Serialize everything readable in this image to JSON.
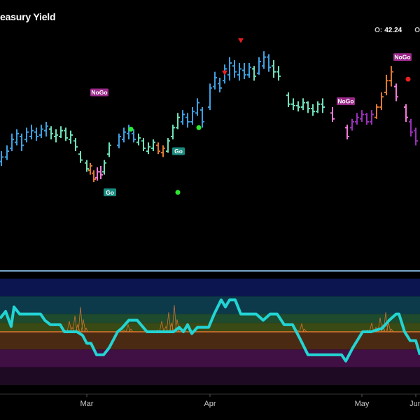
{
  "header": {
    "title": "easury Yield",
    "ohlc_label": "O:",
    "ohlc_value": "42.24",
    "next_label": "O"
  },
  "chart_data": {
    "type": "bar",
    "title": "easury Yield",
    "x_ticks": [
      {
        "label": "Mar",
        "bar": 17
      },
      {
        "label": "Apr",
        "bar": 42
      },
      {
        "label": "May",
        "bar": 69
      },
      {
        "label": "Jun",
        "bar": 96
      }
    ],
    "price_ylim": [
      0,
      100
    ],
    "price_bars": [
      {
        "c": "#3e9fe0",
        "lo": 30,
        "hi": 40,
        "o": 33,
        "cl": 36
      },
      {
        "c": "#3e9fe0",
        "lo": 34,
        "hi": 44,
        "o": 36,
        "cl": 40
      },
      {
        "c": "#3e9fe0",
        "lo": 40,
        "hi": 52,
        "o": 42,
        "cl": 48
      },
      {
        "c": "#3e9fe0",
        "lo": 44,
        "hi": 55,
        "o": 46,
        "cl": 52
      },
      {
        "c": "#3e9fe0",
        "lo": 40,
        "hi": 52,
        "o": 50,
        "cl": 44
      },
      {
        "c": "#3e9fe0",
        "lo": 46,
        "hi": 56,
        "o": 48,
        "cl": 53
      },
      {
        "c": "#3e9fe0",
        "lo": 48,
        "hi": 58,
        "o": 50,
        "cl": 54
      },
      {
        "c": "#3e9fe0",
        "lo": 47,
        "hi": 56,
        "o": 53,
        "cl": 50
      },
      {
        "c": "#3e9fe0",
        "lo": 49,
        "hi": 58,
        "o": 51,
        "cl": 55
      },
      {
        "c": "#3e9fe0",
        "lo": 50,
        "hi": 60,
        "o": 54,
        "cl": 57
      },
      {
        "c": "#6fe0b8",
        "lo": 48,
        "hi": 57,
        "o": 55,
        "cl": 52
      },
      {
        "c": "#6fe0b8",
        "lo": 46,
        "hi": 55,
        "o": 50,
        "cl": 51
      },
      {
        "c": "#6fe0b8",
        "lo": 49,
        "hi": 57,
        "o": 50,
        "cl": 54
      },
      {
        "c": "#6fe0b8",
        "lo": 47,
        "hi": 56,
        "o": 54,
        "cl": 49
      },
      {
        "c": "#6fe0b8",
        "lo": 45,
        "hi": 54,
        "o": 48,
        "cl": 51
      },
      {
        "c": "#6fe0b8",
        "lo": 40,
        "hi": 49,
        "o": 47,
        "cl": 43
      },
      {
        "c": "#6fe0b8",
        "lo": 32,
        "hi": 40,
        "o": 38,
        "cl": 34
      },
      {
        "c": "#6fe0b8",
        "lo": 26,
        "hi": 34,
        "o": 32,
        "cl": 28
      },
      {
        "c": "#e07830",
        "lo": 24,
        "hi": 32,
        "o": 27,
        "cl": 30
      },
      {
        "c": "#e07830",
        "lo": 19,
        "hi": 27,
        "o": 25,
        "cl": 21
      },
      {
        "c": "#f07ad8",
        "lo": 20,
        "hi": 29,
        "o": 22,
        "cl": 26
      },
      {
        "c": "#f07ad8",
        "lo": 21,
        "hi": 30,
        "o": 26,
        "cl": 24
      },
      {
        "c": "#6fe0b8",
        "lo": 24,
        "hi": 34,
        "o": 26,
        "cl": 32
      },
      {
        "c": "#6fe0b8",
        "lo": 36,
        "hi": 46,
        "o": 38,
        "cl": 44
      },
      {
        "c": "#3e9fe0",
        "lo": 42,
        "hi": 52,
        "o": 44,
        "cl": 50
      },
      {
        "c": "#3e9fe0",
        "lo": 46,
        "hi": 56,
        "o": 48,
        "cl": 53
      },
      {
        "c": "#3e9fe0",
        "lo": 48,
        "hi": 58,
        "o": 52,
        "cl": 55
      },
      {
        "c": "#3e9fe0",
        "lo": 46,
        "hi": 55,
        "o": 52,
        "cl": 48
      },
      {
        "c": "#6fe0b8",
        "lo": 44,
        "hi": 52,
        "o": 46,
        "cl": 49
      },
      {
        "c": "#6fe0b8",
        "lo": 40,
        "hi": 49,
        "o": 47,
        "cl": 42
      },
      {
        "c": "#6fe0b8",
        "lo": 38,
        "hi": 46,
        "o": 40,
        "cl": 43
      },
      {
        "c": "#6fe0b8",
        "lo": 40,
        "hi": 48,
        "o": 42,
        "cl": 46
      },
      {
        "c": "#e07830",
        "lo": 38,
        "hi": 46,
        "o": 44,
        "cl": 40
      },
      {
        "c": "#e07830",
        "lo": 36,
        "hi": 44,
        "o": 39,
        "cl": 42
      },
      {
        "c": "#6fe0b8",
        "lo": 39,
        "hi": 49,
        "o": 40,
        "cl": 47
      },
      {
        "c": "#6fe0b8",
        "lo": 48,
        "hi": 58,
        "o": 50,
        "cl": 56
      },
      {
        "c": "#6fe0b8",
        "lo": 55,
        "hi": 66,
        "o": 56,
        "cl": 63
      },
      {
        "c": "#3e9fe0",
        "lo": 58,
        "hi": 68,
        "o": 60,
        "cl": 65
      },
      {
        "c": "#3e9fe0",
        "lo": 56,
        "hi": 66,
        "o": 63,
        "cl": 60
      },
      {
        "c": "#3e9fe0",
        "lo": 58,
        "hi": 70,
        "o": 60,
        "cl": 67
      },
      {
        "c": "#3e9fe0",
        "lo": 64,
        "hi": 76,
        "o": 66,
        "cl": 73
      },
      {
        "c": "#3e9fe0",
        "lo": 56,
        "hi": 70,
        "o": 68,
        "cl": 60
      },
      {
        "c": "#3e9fe0",
        "lo": 68,
        "hi": 86,
        "o": 70,
        "cl": 83
      },
      {
        "c": "#3e9fe0",
        "lo": 82,
        "hi": 94,
        "o": 84,
        "cl": 90
      },
      {
        "c": "#3e9fe0",
        "lo": 80,
        "hi": 90,
        "o": 86,
        "cl": 83
      },
      {
        "c": "#3e9fe0",
        "lo": 86,
        "hi": 99,
        "o": 88,
        "cl": 96
      },
      {
        "c": "#3e9fe0",
        "lo": 88,
        "hi": 104,
        "o": 92,
        "cl": 100
      },
      {
        "c": "#3e9fe0",
        "lo": 90,
        "hi": 102,
        "o": 98,
        "cl": 94
      },
      {
        "c": "#3e9fe0",
        "lo": 88,
        "hi": 100,
        "o": 92,
        "cl": 96
      },
      {
        "c": "#3e9fe0",
        "lo": 89,
        "hi": 100,
        "o": 95,
        "cl": 92
      },
      {
        "c": "#3e9fe0",
        "lo": 90,
        "hi": 100,
        "o": 92,
        "cl": 97
      },
      {
        "c": "#6fe0b8",
        "lo": 88,
        "hi": 98,
        "o": 96,
        "cl": 91
      },
      {
        "c": "#3e9fe0",
        "lo": 92,
        "hi": 104,
        "o": 93,
        "cl": 101
      },
      {
        "c": "#3e9fe0",
        "lo": 96,
        "hi": 108,
        "o": 98,
        "cl": 104
      },
      {
        "c": "#3e9fe0",
        "lo": 94,
        "hi": 106,
        "o": 104,
        "cl": 97
      },
      {
        "c": "#6fe0b8",
        "lo": 90,
        "hi": 102,
        "o": 98,
        "cl": 94
      },
      {
        "c": "#6fe0b8",
        "lo": 88,
        "hi": 98,
        "o": 94,
        "cl": 91
      },
      {
        "c": "#6fe0b8",
        "lo": 70,
        "hi": 80,
        "o": 78,
        "cl": 72
      },
      {
        "c": "#6fe0b8",
        "lo": 68,
        "hi": 76,
        "o": 72,
        "cl": 71
      },
      {
        "c": "#6fe0b8",
        "lo": 67,
        "hi": 74,
        "o": 71,
        "cl": 70
      },
      {
        "c": "#6fe0b8",
        "lo": 68,
        "hi": 76,
        "o": 70,
        "cl": 73
      },
      {
        "c": "#6fe0b8",
        "lo": 66,
        "hi": 74,
        "o": 73,
        "cl": 69
      },
      {
        "c": "#6fe0b8",
        "lo": 64,
        "hi": 72,
        "o": 69,
        "cl": 67
      },
      {
        "c": "#6fe0b8",
        "lo": 66,
        "hi": 74,
        "o": 67,
        "cl": 72
      },
      {
        "c": "#6fe0b8",
        "lo": 66,
        "hi": 76,
        "o": 72,
        "cl": 70
      },
      {
        "c": "#f07ad8",
        "lo": 60,
        "hi": 70,
        "o": 66,
        "cl": 62
      },
      {
        "c": "#f07ad8",
        "lo": 48,
        "hi": 58,
        "o": 56,
        "cl": 50
      },
      {
        "c": "#9a30b8",
        "lo": 54,
        "hi": 62,
        "o": 56,
        "cl": 60
      },
      {
        "c": "#9a30b8",
        "lo": 58,
        "hi": 66,
        "o": 60,
        "cl": 63
      },
      {
        "c": "#9a30b8",
        "lo": 60,
        "hi": 68,
        "o": 62,
        "cl": 65
      },
      {
        "c": "#9a30b8",
        "lo": 58,
        "hi": 66,
        "o": 65,
        "cl": 60
      },
      {
        "c": "#9a30b8",
        "lo": 58,
        "hi": 68,
        "o": 60,
        "cl": 65
      },
      {
        "c": "#e07830",
        "lo": 62,
        "hi": 72,
        "o": 63,
        "cl": 70
      },
      {
        "c": "#e07830",
        "lo": 68,
        "hi": 80,
        "o": 70,
        "cl": 77
      },
      {
        "c": "#e07830",
        "lo": 78,
        "hi": 92,
        "o": 80,
        "cl": 88
      },
      {
        "c": "#e07830",
        "lo": 84,
        "hi": 98,
        "o": 88,
        "cl": 94
      },
      {
        "c": "#f07ad8",
        "lo": 74,
        "hi": 86,
        "o": 84,
        "cl": 77
      },
      {
        "c": "#f07ad8",
        "lo": 60,
        "hi": 72,
        "o": 70,
        "cl": 63
      },
      {
        "c": "#9a30b8",
        "lo": 50,
        "hi": 62,
        "o": 60,
        "cl": 53
      },
      {
        "c": "#9a30b8",
        "lo": 44,
        "hi": 56,
        "o": 54,
        "cl": 47
      }
    ],
    "price_bar_x": [
      2,
      10,
      17,
      24,
      31,
      38,
      45,
      52,
      59,
      66,
      73,
      80,
      87,
      94,
      101,
      108,
      115,
      124,
      129,
      134,
      139,
      144,
      149,
      156,
      170,
      177,
      184,
      191,
      198,
      205,
      212,
      219,
      226,
      233,
      240,
      247,
      254,
      261,
      268,
      275,
      282,
      289,
      300,
      307,
      314,
      321,
      328,
      335,
      342,
      349,
      356,
      363,
      370,
      377,
      384,
      391,
      398,
      412,
      419,
      426,
      433,
      440,
      447,
      454,
      461,
      475,
      496,
      503,
      510,
      517,
      524,
      531,
      538,
      545,
      552,
      559,
      566,
      580,
      587,
      594
    ],
    "signals": [
      {
        "type": "NoGo",
        "x": 142,
        "val": 80,
        "bg": "#9a2a8a"
      },
      {
        "type": "Go",
        "x": 157,
        "val": 12,
        "bg": "#1a8a80"
      },
      {
        "type": "Go",
        "x": 255,
        "val": 40,
        "bg": "#1a8a80"
      },
      {
        "type": "NoGo",
        "x": 494,
        "val": 74,
        "bg": "#9a2a8a"
      },
      {
        "type": "NoGo",
        "x": 575,
        "val": 104,
        "bg": "#9a2a8a"
      }
    ],
    "dots": [
      {
        "x": 187,
        "val": 55,
        "color": "#2ee82e"
      },
      {
        "x": 284,
        "val": 56,
        "color": "#2ee82e"
      },
      {
        "x": 254,
        "val": 12,
        "color": "#2ee82e"
      },
      {
        "x": 583,
        "val": 89,
        "color": "#e82020"
      }
    ],
    "triangles": [
      {
        "x": 344,
        "val": 115,
        "color": "#e82020"
      },
      {
        "x": 321,
        "val": 93,
        "color": "#e82020"
      }
    ],
    "oscillator": {
      "ylim": [
        -6,
        6
      ],
      "midline": 0,
      "bands": [
        {
          "from": 4,
          "to": 6,
          "color": "#0c1550"
        },
        {
          "from": 2,
          "to": 4,
          "color": "#0d3a4a"
        },
        {
          "from": 1,
          "to": 2,
          "color": "#1e4a2e"
        },
        {
          "from": 0,
          "to": 1,
          "color": "#3a4a14"
        },
        {
          "from": -2,
          "to": 0,
          "color": "#4a2a12"
        },
        {
          "from": -4,
          "to": -2,
          "color": "#400f44"
        },
        {
          "from": -6,
          "to": -4,
          "color": "#1e0a22"
        }
      ],
      "line_color": "#22d4d4",
      "mid_color": "#e07830",
      "spike_color": "#e07830",
      "line": [
        [
          0,
          1.5
        ],
        [
          8,
          2.3
        ],
        [
          16,
          0.6
        ],
        [
          20,
          2.8
        ],
        [
          28,
          2.0
        ],
        [
          58,
          2.0
        ],
        [
          64,
          1.3
        ],
        [
          72,
          0.8
        ],
        [
          86,
          0.8
        ],
        [
          92,
          0.0
        ],
        [
          110,
          0.0
        ],
        [
          118,
          -0.4
        ],
        [
          124,
          -1.3
        ],
        [
          130,
          -1.3
        ],
        [
          138,
          -2.6
        ],
        [
          148,
          -2.6
        ],
        [
          156,
          -1.8
        ],
        [
          168,
          0.0
        ],
        [
          174,
          0.4
        ],
        [
          184,
          1.3
        ],
        [
          196,
          1.3
        ],
        [
          210,
          0.0
        ],
        [
          248,
          0.0
        ],
        [
          256,
          0.5
        ],
        [
          262,
          0.0
        ],
        [
          268,
          0.8
        ],
        [
          274,
          -0.2
        ],
        [
          282,
          0.5
        ],
        [
          298,
          0.5
        ],
        [
          306,
          2.0
        ],
        [
          316,
          3.6
        ],
        [
          322,
          2.8
        ],
        [
          328,
          3.6
        ],
        [
          336,
          3.6
        ],
        [
          344,
          2.0
        ],
        [
          366,
          2.0
        ],
        [
          376,
          1.3
        ],
        [
          386,
          2.0
        ],
        [
          396,
          2.0
        ],
        [
          406,
          0.8
        ],
        [
          418,
          0.8
        ],
        [
          428,
          -0.7
        ],
        [
          440,
          -2.6
        ],
        [
          446,
          -2.6
        ],
        [
          488,
          -2.6
        ],
        [
          494,
          -3.3
        ],
        [
          504,
          -1.8
        ],
        [
          518,
          0.0
        ],
        [
          530,
          0.0
        ],
        [
          546,
          0.4
        ],
        [
          556,
          1.3
        ],
        [
          566,
          2.0
        ],
        [
          570,
          2.0
        ],
        [
          578,
          0.0
        ],
        [
          586,
          -1.0
        ],
        [
          594,
          -1.0
        ],
        [
          600,
          -2.6
        ]
      ],
      "spikes": [
        [
          90,
          0.2
        ],
        [
          96,
          1.2
        ],
        [
          100,
          0.5
        ],
        [
          104,
          1.8
        ],
        [
          108,
          0.8
        ],
        [
          112,
          2.8
        ],
        [
          116,
          1.4
        ],
        [
          120,
          0.4
        ],
        [
          174,
          0.2
        ],
        [
          180,
          0.8
        ],
        [
          184,
          0.3
        ],
        [
          222,
          0.2
        ],
        [
          228,
          1.2
        ],
        [
          234,
          0.6
        ],
        [
          238,
          2.2
        ],
        [
          242,
          1.0
        ],
        [
          246,
          3.0
        ],
        [
          250,
          1.4
        ],
        [
          254,
          0.3
        ],
        [
          422,
          0.2
        ],
        [
          428,
          0.9
        ],
        [
          432,
          0.3
        ],
        [
          522,
          0.2
        ],
        [
          528,
          1.0
        ],
        [
          534,
          0.5
        ],
        [
          540,
          1.6
        ],
        [
          544,
          0.8
        ],
        [
          548,
          2.2
        ],
        [
          552,
          1.0
        ],
        [
          556,
          0.3
        ]
      ]
    }
  }
}
